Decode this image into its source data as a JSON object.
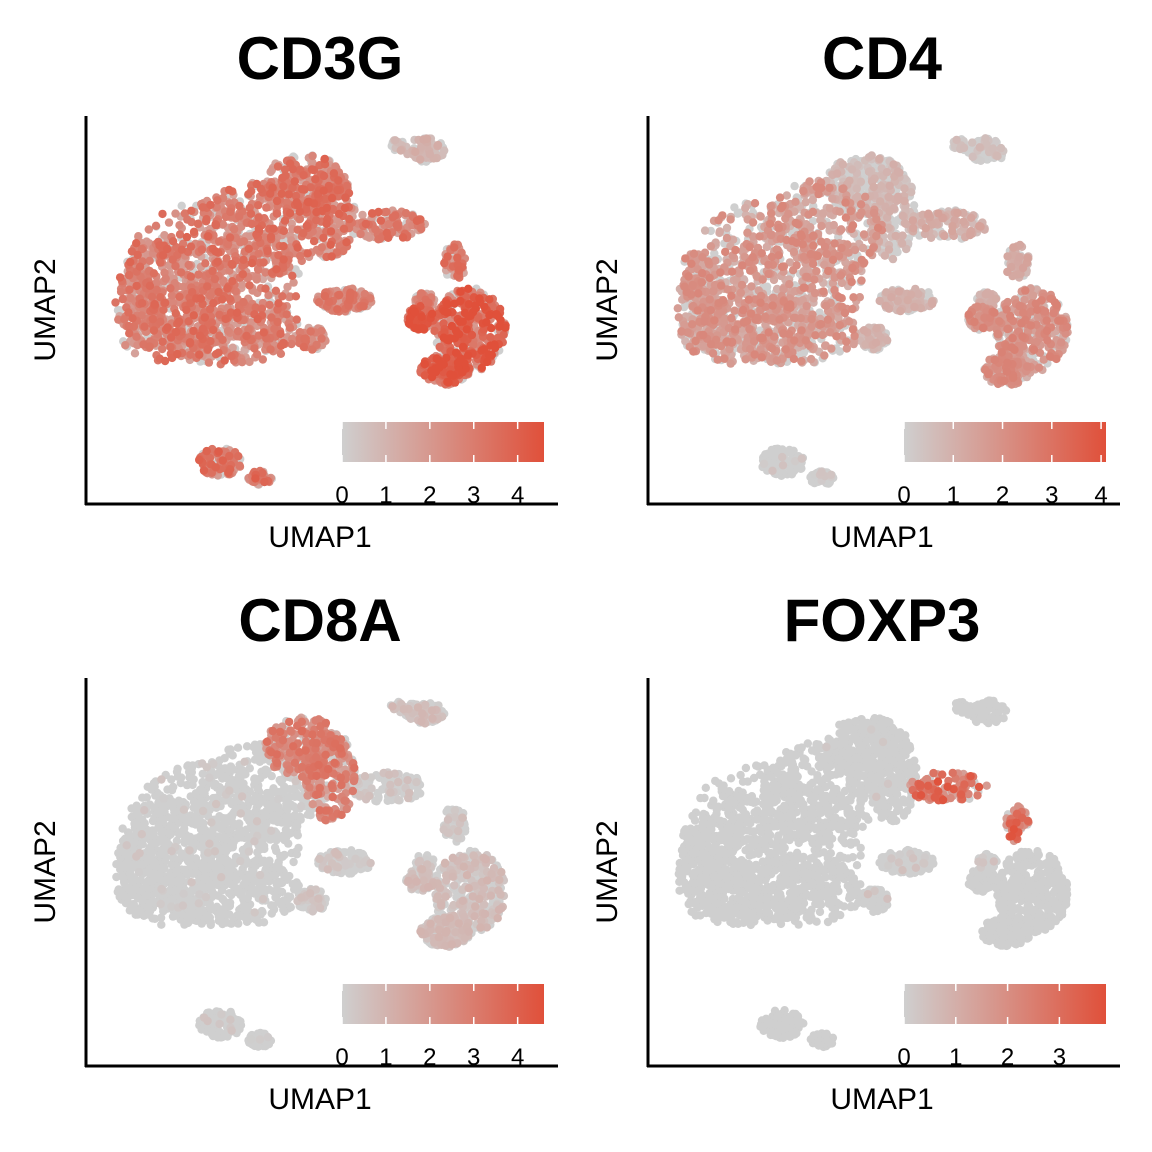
{
  "colors": {
    "low": "#cfcfcf",
    "high": "#e0503a",
    "axis": "#000000"
  },
  "chart_data": [
    {
      "type": "scatter",
      "title": "CD3G",
      "xlabel": "UMAP1",
      "ylabel": "UMAP2",
      "colorbar": {
        "range": [
          0,
          4.6
        ],
        "ticks": [
          0,
          1,
          2,
          3,
          4
        ]
      },
      "cluster_expression": {
        "main": 2.6,
        "top": 2.7,
        "topright": 0.9,
        "mid": 2.4,
        "right": 3.4,
        "bridge": 2.6,
        "small": 2.8
      }
    },
    {
      "type": "scatter",
      "title": "CD4",
      "xlabel": "UMAP1",
      "ylabel": "UMAP2",
      "colorbar": {
        "range": [
          0,
          4.1
        ],
        "ticks": [
          0,
          1,
          2,
          3,
          4
        ]
      },
      "cluster_expression": {
        "main": 1.6,
        "top": 0.7,
        "topright": 0.4,
        "mid": 0.8,
        "right": 1.7,
        "bridge": 1.0,
        "small": 0.1
      }
    },
    {
      "type": "scatter",
      "title": "CD8A",
      "xlabel": "UMAP1",
      "ylabel": "UMAP2",
      "colorbar": {
        "range": [
          0,
          4.6
        ],
        "ticks": [
          0,
          1,
          2,
          3,
          4
        ]
      },
      "cluster_expression": {
        "main": 0.05,
        "top": 2.4,
        "topright": 0.5,
        "mid": 0.3,
        "right": 0.6,
        "bridge": 0.3,
        "small": 0.1
      }
    },
    {
      "type": "scatter",
      "title": "FOXP3",
      "xlabel": "UMAP1",
      "ylabel": "UMAP2",
      "colorbar": {
        "range": [
          0,
          3.9
        ],
        "ticks": [
          0,
          1,
          2,
          3
        ]
      },
      "cluster_expression": {
        "main": 0.0,
        "top": 0.02,
        "topright": 0.0,
        "mid": 0.1,
        "right": 0.0,
        "bridge": 2.6,
        "small": 0.0
      }
    }
  ]
}
